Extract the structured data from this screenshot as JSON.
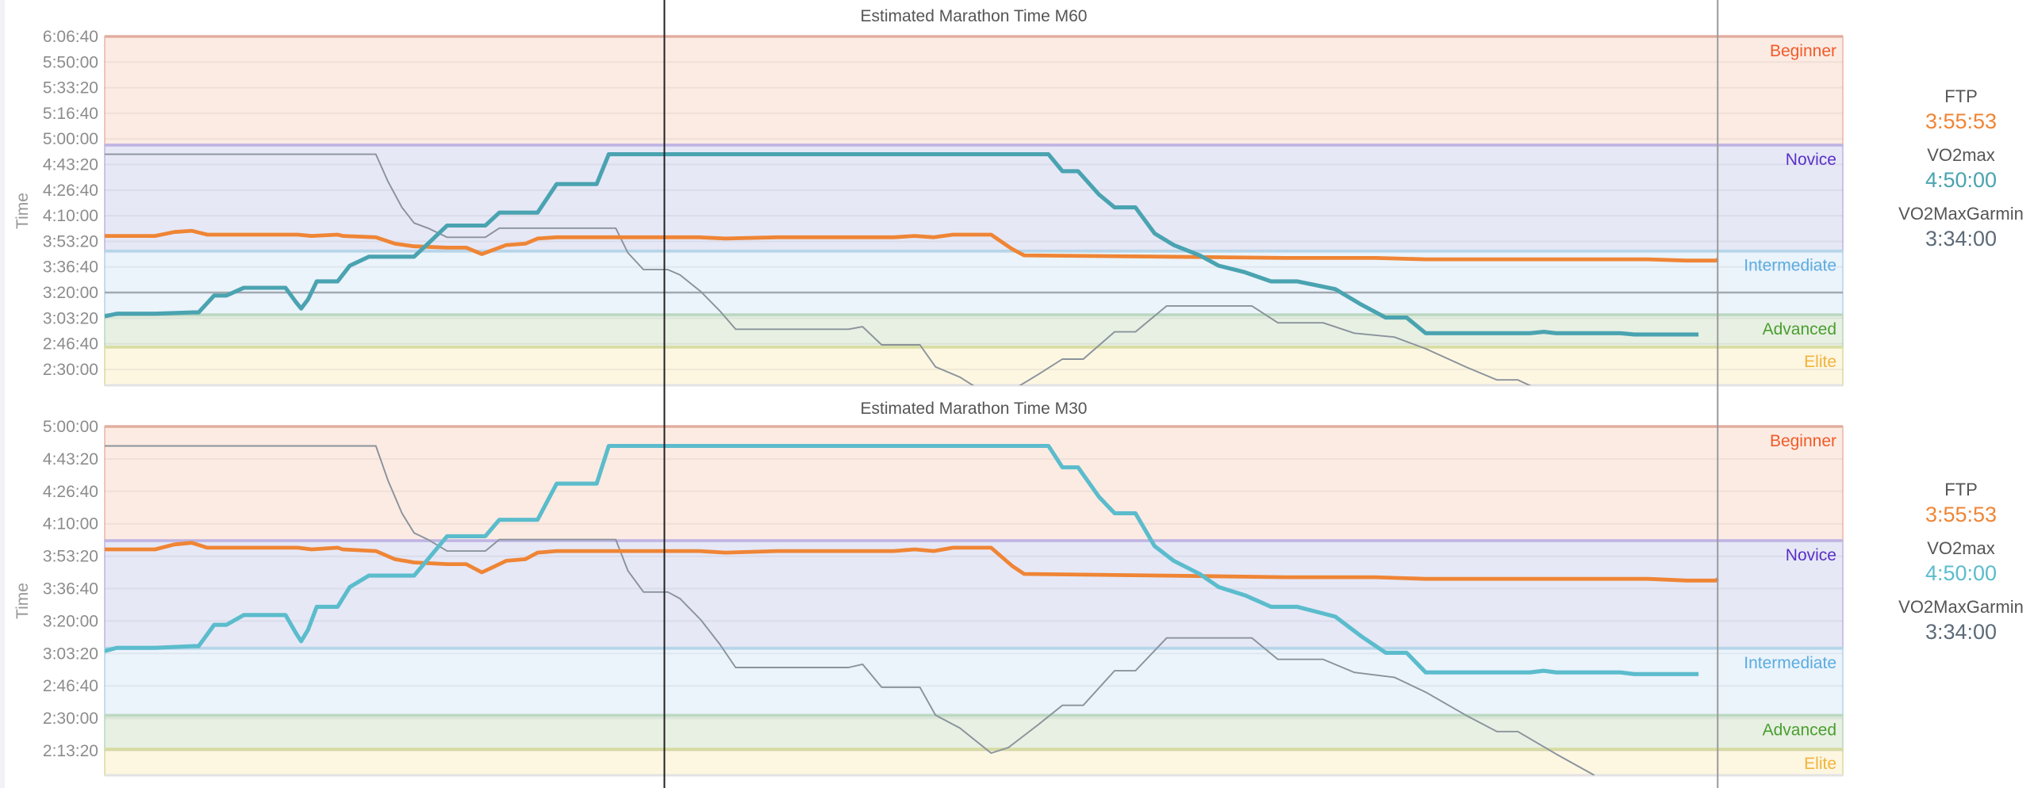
{
  "chart_data": [
    {
      "type": "line",
      "title": "Estimated Marathon Time M60",
      "ylabel": "Time",
      "xlabel": "",
      "ylim": [
        8380,
        22000
      ],
      "xlim": [
        0,
        100
      ],
      "grid": true,
      "y_ticks": [
        {
          "value": 22000,
          "label": "6:06:40"
        },
        {
          "value": 21000,
          "label": "5:50:00"
        },
        {
          "value": 20000,
          "label": "5:33:20"
        },
        {
          "value": 19000,
          "label": "5:16:40"
        },
        {
          "value": 18000,
          "label": "5:00:00"
        },
        {
          "value": 17000,
          "label": "4:43:20"
        },
        {
          "value": 16000,
          "label": "4:26:40"
        },
        {
          "value": 15000,
          "label": "4:10:00"
        },
        {
          "value": 14000,
          "label": "3:53:20"
        },
        {
          "value": 13000,
          "label": "3:36:40"
        },
        {
          "value": 12000,
          "label": "3:20:00"
        },
        {
          "value": 11000,
          "label": "3:03:20"
        },
        {
          "value": 10000,
          "label": "2:46:40"
        },
        {
          "value": 9000,
          "label": "2:30:00"
        }
      ],
      "zones": [
        {
          "name": "Beginner",
          "from": 17760,
          "to": 22000,
          "fill": "#fcebe3",
          "border": "#e9b5a6",
          "color": "#f05a28"
        },
        {
          "name": "Novice",
          "from": 13620,
          "to": 17760,
          "fill": "#e6e8f6",
          "border": "#bdb3e3",
          "color": "#5a2fc9"
        },
        {
          "name": "Intermediate",
          "from": 11130,
          "to": 13620,
          "fill": "#ebf3fb",
          "border": "#b3d3e8",
          "color": "#5aace0"
        },
        {
          "name": "Advanced",
          "from": 9870,
          "to": 11130,
          "fill": "#e7f0e3",
          "border": "#b9d7bf",
          "color": "#4a9e2f"
        },
        {
          "name": "Elite",
          "from": 8380,
          "to": 9870,
          "fill": "#fdf6e1",
          "border": "#d7dca0",
          "color": "#f2b33a"
        }
      ],
      "reference_line": 12000,
      "cursor_x": 32.2,
      "today_x": 92.8,
      "series_colors": {
        "FTP": "#ef8535",
        "VO2max": "#4aa3b0",
        "VO2MaxGarmin": "#8a939b"
      }
    },
    {
      "type": "line",
      "title": "Estimated Marathon Time M30",
      "ylabel": "Time",
      "xlabel": "",
      "ylim": [
        7242,
        18000
      ],
      "xlim": [
        0,
        100
      ],
      "grid": true,
      "y_ticks": [
        {
          "value": 18000,
          "label": "5:00:00"
        },
        {
          "value": 17000,
          "label": "4:43:20"
        },
        {
          "value": 16000,
          "label": "4:26:40"
        },
        {
          "value": 15000,
          "label": "4:10:00"
        },
        {
          "value": 14000,
          "label": "3:53:20"
        },
        {
          "value": 13000,
          "label": "3:36:40"
        },
        {
          "value": 12000,
          "label": "3:20:00"
        },
        {
          "value": 11000,
          "label": "3:03:20"
        },
        {
          "value": 10000,
          "label": "2:46:40"
        },
        {
          "value": 9000,
          "label": "2:30:00"
        },
        {
          "value": 8000,
          "label": "2:13:20"
        }
      ],
      "zones": [
        {
          "name": "Beginner",
          "from": 14480,
          "to": 18000,
          "fill": "#fcebe3",
          "border": "#e9b5a6",
          "color": "#f05a28"
        },
        {
          "name": "Novice",
          "from": 11160,
          "to": 14480,
          "fill": "#e6e8f6",
          "border": "#bdb3e3",
          "color": "#5a2fc9"
        },
        {
          "name": "Intermediate",
          "from": 9090,
          "to": 11160,
          "fill": "#ebf3fb",
          "border": "#b3d3e8",
          "color": "#5aace0"
        },
        {
          "name": "Advanced",
          "from": 8050,
          "to": 9090,
          "fill": "#e7f0e3",
          "border": "#b9d7bf",
          "color": "#4a9e2f"
        },
        {
          "name": "Elite",
          "from": 7242,
          "to": 8050,
          "fill": "#fdf6e1",
          "border": "#d7dca0",
          "color": "#f2b33a"
        }
      ],
      "reference_line": null,
      "cursor_x": 32.2,
      "today_x": 92.8,
      "series_colors": {
        "FTP": "#ef8535",
        "VO2max": "#5bbccc",
        "VO2MaxGarmin": "#8a939b"
      }
    }
  ],
  "series": [
    {
      "name": "FTP",
      "width": 3,
      "x": [
        0,
        2.9,
        4.0,
        5.0,
        5.9,
        11.1,
        11.9,
        13.4,
        13.7,
        15.6,
        16.7,
        17.8,
        19.7,
        20.8,
        21.7,
        22.3,
        23.1,
        24.2,
        24.9,
        26.0,
        34.2,
        35.7,
        38.7,
        45.4,
        46.6,
        47.7,
        48.8,
        51.0,
        52.2,
        52.9,
        61.1,
        67.9,
        73.1,
        76.0,
        81.3,
        88.8,
        91.0,
        92.7,
        92.8
      ],
      "y": [
        14211,
        14211,
        14363,
        14413,
        14261,
        14261,
        14211,
        14261,
        14211,
        14160,
        13907,
        13806,
        13755,
        13755,
        13502,
        13654,
        13857,
        13907,
        14110,
        14160,
        14160,
        14110,
        14160,
        14160,
        14211,
        14160,
        14261,
        14261,
        13705,
        13452,
        13401,
        13351,
        13351,
        13300,
        13300,
        13300,
        13250,
        13250,
        13300
      ]
    },
    {
      "name": "VO2max",
      "width": 3.2,
      "x": [
        0,
        0.7,
        2.9,
        5.1,
        5.4,
        6.3,
        7.0,
        8.0,
        10.4,
        11.0,
        11.3,
        11.7,
        12.2,
        13.4,
        14.1,
        15.2,
        17.8,
        18.6,
        19.7,
        21.9,
        22.7,
        24.9,
        26.0,
        28.3,
        29.0,
        54.3,
        55.1,
        56.0,
        57.2,
        58.1,
        59.3,
        60.4,
        61.5,
        63.0,
        64.1,
        65.6,
        67.1,
        68.6,
        70.8,
        72.3,
        73.7,
        74.9,
        76.0,
        82.0,
        82.8,
        83.5,
        87.2,
        88.0,
        91.7
      ],
      "y": [
        11073,
        11174,
        11174,
        11224,
        11224,
        11883,
        11883,
        12186,
        12186,
        11630,
        11376,
        11731,
        12439,
        12439,
        13047,
        13401,
        13401,
        13907,
        14616,
        14616,
        15122,
        15122,
        16236,
        16236,
        17400,
        17400,
        16742,
        16742,
        15831,
        15325,
        15325,
        14312,
        13857,
        13452,
        13047,
        12794,
        12439,
        12439,
        12136,
        11528,
        11022,
        11022,
        10415,
        10415,
        10466,
        10415,
        10415,
        10364,
        10364
      ]
    },
    {
      "name": "VO2MaxGarmin",
      "width": 1.2,
      "x": [
        0,
        15.6,
        16.3,
        17.1,
        17.8,
        18.6,
        19.7,
        21.9,
        22.7,
        29.4,
        30.1,
        31.0,
        32.4,
        33.1,
        34.3,
        35.4,
        36.3,
        42.8,
        43.6,
        44.7,
        46.9,
        47.8,
        49.2,
        51.0,
        52.0,
        53.7,
        55.1,
        56.3,
        58.1,
        59.3,
        61.1,
        66.0,
        67.5,
        70.1,
        71.9,
        74.2,
        76.0,
        78.3,
        80.1,
        81.3,
        83.5,
        85.7
      ],
      "y": [
        17400,
        17400,
        16336,
        15324,
        14716,
        14514,
        14160,
        14160,
        14514,
        14514,
        13553,
        12895,
        12895,
        12693,
        12035,
        11276,
        10567,
        10567,
        10668,
        9959,
        9959,
        9098,
        8700,
        7927,
        8100,
        8800,
        9400,
        9400,
        10466,
        10466,
        11478,
        11478,
        10820,
        10820,
        10415,
        10263,
        9807,
        9098,
        8592,
        8592,
        7900,
        7245
      ]
    }
  ],
  "panels": [
    {
      "items": [
        {
          "label": "FTP",
          "value": "3:55:53"
        },
        {
          "label": "VO2max",
          "value": "4:50:00"
        },
        {
          "label": "VO2MaxGarmin",
          "value": "3:34:00"
        }
      ]
    },
    {
      "items": [
        {
          "label": "FTP",
          "value": "3:55:53"
        },
        {
          "label": "VO2max",
          "value": "4:50:00"
        },
        {
          "label": "VO2MaxGarmin",
          "value": "3:34:00"
        }
      ]
    }
  ]
}
